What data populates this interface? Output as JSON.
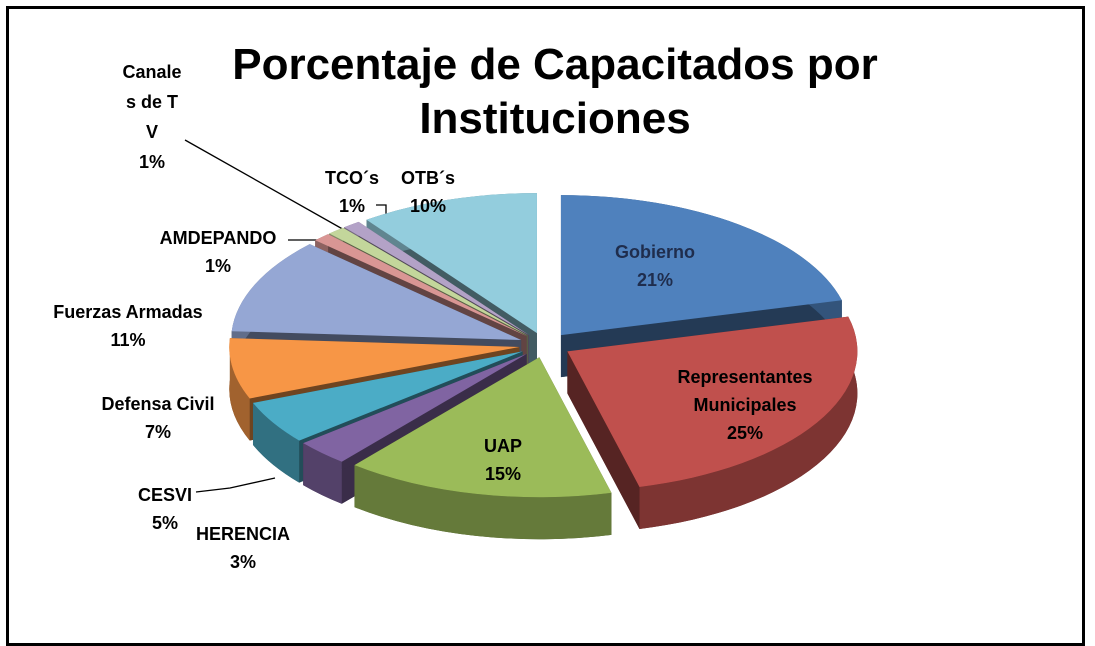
{
  "chart_data": {
    "type": "pie",
    "title": "Porcentaje de Capacitados por Instituciones",
    "categories": [
      "Gobierno",
      "Representantes Municipales",
      "UAP",
      "HERENCIA",
      "CESVI",
      "Defensa Civil",
      "Fuerzas Armadas",
      "AMDEPANDO",
      "Canales de TV",
      "TCO´s",
      "OTB´s"
    ],
    "values": [
      21,
      25,
      15,
      3,
      5,
      7,
      11,
      1,
      1,
      1,
      10
    ],
    "value_labels": [
      "21%",
      "25%",
      "15%",
      "3%",
      "5%",
      "7%",
      "11%",
      "1%",
      "1%",
      "1%",
      "10%"
    ],
    "colors": [
      "#4f81bd",
      "#c0504d",
      "#9bbb59",
      "#8064a2",
      "#4bacc6",
      "#f79646",
      "#95a7d4",
      "#d99694",
      "#c3d69b",
      "#b3a2c7",
      "#93cddd"
    ]
  }
}
